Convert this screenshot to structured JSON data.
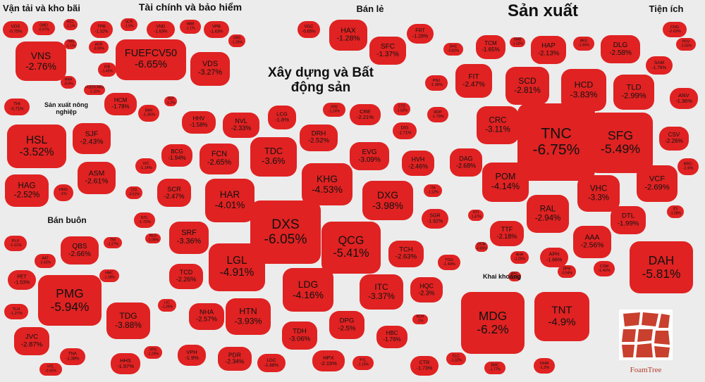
{
  "chart_data": {
    "type": "treemap",
    "title": "",
    "unit": "%",
    "colors": {
      "decline": "#e02222",
      "background": "#ececec",
      "logo": "#c9402e"
    },
    "groups": [
      {
        "name": "Vận tải và kho bãi",
        "items": [
          {
            "ticker": "VOS",
            "change": -0.75
          },
          {
            "ticker": "GMD",
            "change": -0.97
          },
          {
            "ticker": "HLC",
            "change": -1.1
          },
          {
            "ticker": "VNS",
            "change": -2.76
          },
          {
            "ticker": "TMS",
            "change": -1.1
          },
          {
            "ticker": "HAH",
            "change": -0.9
          }
        ]
      },
      {
        "name": "Tài chính và bảo hiểm",
        "items": [
          {
            "ticker": "TPB",
            "change": -1.32
          },
          {
            "ticker": "SCR",
            "change": -1.5
          },
          {
            "ticker": "VND",
            "change": -1.63
          },
          {
            "ticker": "MBB",
            "change": -1.1
          },
          {
            "ticker": "VPB",
            "change": -1.43
          },
          {
            "ticker": "AGR",
            "change": -0.99
          },
          {
            "ticker": "FUEFCV50",
            "change": -6.65
          },
          {
            "ticker": "VDS",
            "change": -3.27
          },
          {
            "ticker": "ORS",
            "change": -1.26
          },
          {
            "ticker": "EIB",
            "change": -1.45
          },
          {
            "ticker": "HCM",
            "change": -1.78
          },
          {
            "ticker": "BMI",
            "change": -1.35
          },
          {
            "ticker": "FUEDCMID",
            "change": -1.11
          },
          {
            "ticker": "SSI",
            "change": -1.2
          }
        ]
      },
      {
        "name": "Bán lẻ",
        "items": [
          {
            "ticker": "VGC",
            "change": -0.65
          },
          {
            "ticker": "HAX",
            "change": -1.28
          },
          {
            "ticker": "FRT",
            "change": -1.28
          },
          {
            "ticker": "SFC",
            "change": -1.37
          }
        ]
      },
      {
        "name": "Sản xuất",
        "items": [
          {
            "ticker": "DHC",
            "change": -0.82
          },
          {
            "ticker": "TCM",
            "change": -1.65
          },
          {
            "ticker": "SMB",
            "change": -1.32
          },
          {
            "ticker": "HAP",
            "change": -2.13
          },
          {
            "ticker": "BKG",
            "change": -1.46
          },
          {
            "ticker": "DLG",
            "change": -2.58
          },
          {
            "ticker": "PNJ",
            "change": -1.38
          },
          {
            "ticker": "FIT",
            "change": -2.47
          },
          {
            "ticker": "SCD",
            "change": -2.81
          },
          {
            "ticker": "HCD",
            "change": -3.83
          },
          {
            "ticker": "TLD",
            "change": -2.99
          },
          {
            "ticker": "RDP",
            "change": -1.79
          },
          {
            "ticker": "CRC",
            "change": -3.11
          },
          {
            "ticker": "TNC",
            "change": -6.75
          },
          {
            "ticker": "SFG",
            "change": -5.49
          },
          {
            "ticker": "DAG",
            "change": -2.68
          },
          {
            "ticker": "POM",
            "change": -4.14
          },
          {
            "ticker": "VHC",
            "change": -3.3
          },
          {
            "ticker": "VCF",
            "change": -2.69
          },
          {
            "ticker": "RAL",
            "change": -2.94
          },
          {
            "ticker": "DTL",
            "change": -1.99
          },
          {
            "ticker": "HTI",
            "change": -1.47
          },
          {
            "ticker": "TTF",
            "change": -2.18
          },
          {
            "ticker": "AAA",
            "change": -2.56
          },
          {
            "ticker": "NHH",
            "change": -1.26
          },
          {
            "ticker": "APH",
            "change": -1.66
          },
          {
            "ticker": "CSM",
            "change": -1.42
          },
          {
            "ticker": "DPM",
            "change": -0.94
          },
          {
            "ticker": "DCM",
            "change": -0.85
          },
          {
            "ticker": "BFC",
            "change": -1.1
          }
        ]
      },
      {
        "name": "Tiện ích",
        "items": [
          {
            "ticker": "CNG",
            "change": -2.63
          },
          {
            "ticker": "PGV",
            "change": -2.55
          },
          {
            "ticker": "SAM",
            "change": -1.79
          },
          {
            "ticker": "ANV",
            "change": -1.36
          },
          {
            "ticker": "CSV",
            "change": -2.26
          },
          {
            "ticker": "BRC",
            "change": -1.6
          },
          {
            "ticker": "IDI",
            "change": -1.08
          },
          {
            "ticker": "DAH",
            "change": -5.81
          }
        ]
      },
      {
        "name": "Xây dựng và Bất động sản",
        "items": [
          {
            "ticker": "LCG",
            "change": -1.8
          },
          {
            "ticker": "VRE",
            "change": -1.24
          },
          {
            "ticker": "CRE",
            "change": -2.21
          },
          {
            "ticker": "CTD",
            "change": -1.02
          },
          {
            "ticker": "HHV",
            "change": -1.58
          },
          {
            "ticker": "NVL",
            "change": -2.33
          },
          {
            "ticker": "DRH",
            "change": -2.52
          },
          {
            "ticker": "DIG",
            "change": -1.71
          },
          {
            "ticker": "BCG",
            "change": -1.94
          },
          {
            "ticker": "FCN",
            "change": -2.65
          },
          {
            "ticker": "TDC",
            "change": -3.6
          },
          {
            "ticker": "EVG",
            "change": -3.09
          },
          {
            "ticker": "VIC",
            "change": -1.14
          },
          {
            "ticker": "KHG",
            "change": -4.53
          },
          {
            "ticker": "HVH",
            "change": -2.46
          },
          {
            "ticker": "SCR",
            "change": -2.47
          },
          {
            "ticker": "HAR",
            "change": -4.01
          },
          {
            "ticker": "DXG",
            "change": -3.98
          },
          {
            "ticker": "CIG",
            "change": -0.61
          },
          {
            "ticker": "ITA",
            "change": -1.12
          },
          {
            "ticker": "NTL",
            "change": -1.72
          },
          {
            "ticker": "DXS",
            "change": -6.05
          },
          {
            "ticker": "SGR",
            "change": -1.92
          },
          {
            "ticker": "SRF",
            "change": -3.36
          },
          {
            "ticker": "QCG",
            "change": -5.41
          },
          {
            "ticker": "NLG",
            "change": -1.06
          },
          {
            "ticker": "LGL",
            "change": -4.91
          },
          {
            "ticker": "TCH",
            "change": -2.63
          },
          {
            "ticker": "TCD",
            "change": -2.26
          },
          {
            "ticker": "TGG",
            "change": -1.49
          },
          {
            "ticker": "LDG",
            "change": -4.16
          },
          {
            "ticker": "ITC",
            "change": -3.37
          },
          {
            "ticker": "HQC",
            "change": -2.3
          },
          {
            "ticker": "LIC",
            "change": -1.35
          },
          {
            "ticker": "NHA",
            "change": -2.57
          },
          {
            "ticker": "HTN",
            "change": -3.93
          },
          {
            "ticker": "DPG",
            "change": -2.5
          },
          {
            "ticker": "TDH",
            "change": -3.06
          },
          {
            "ticker": "HBC",
            "change": -1.76
          },
          {
            "ticker": "VPH",
            "change": -1.9
          },
          {
            "ticker": "PDR",
            "change": -2.34
          },
          {
            "ticker": "LGC",
            "change": -1.68
          },
          {
            "ticker": "HPX",
            "change": -2.15
          },
          {
            "ticker": "PTL",
            "change": -1.15
          },
          {
            "ticker": "KDH",
            "change": -1.0
          }
        ]
      },
      {
        "name": "Sản xuất nông nghiệp",
        "items": [
          {
            "ticker": "HSL",
            "change": -3.52
          },
          {
            "ticker": "SJF",
            "change": -2.43
          },
          {
            "ticker": "ASM",
            "change": -2.61
          },
          {
            "ticker": "HAG",
            "change": -2.52
          },
          {
            "ticker": "HNG",
            "change": -1.0
          }
        ]
      },
      {
        "name": "Bán buôn",
        "items": [
          {
            "ticker": "PLX",
            "change": -1.11
          },
          {
            "ticker": "AAT",
            "change": -2.42
          },
          {
            "ticker": "QBS",
            "change": -2.66
          },
          {
            "ticker": "TNI",
            "change": -1.27
          },
          {
            "ticker": "PET",
            "change": -1.53
          },
          {
            "ticker": "HMC",
            "change": -1.38
          },
          {
            "ticker": "PMG",
            "change": -5.94
          },
          {
            "ticker": "TLH",
            "change": -1.27
          },
          {
            "ticker": "TDG",
            "change": -3.88
          },
          {
            "ticker": "JVC",
            "change": -2.87
          },
          {
            "ticker": "TNA",
            "change": -1.38
          },
          {
            "ticker": "HHS",
            "change": -1.97
          },
          {
            "ticker": "VPG",
            "change": -1.29
          },
          {
            "ticker": "HTL",
            "change": -0.92
          }
        ]
      },
      {
        "name": "Khai khoáng",
        "items": [
          {
            "ticker": "MDG",
            "change": -6.2
          },
          {
            "ticker": "TNT",
            "change": -4.9
          },
          {
            "ticker": "BMC",
            "change": -1.77
          },
          {
            "ticker": "DHM",
            "change": -1.2
          }
        ]
      }
    ],
    "standalone": [
      {
        "ticker": "THI",
        "change": -0.71
      },
      {
        "ticker": "CTR",
        "change": -1.73
      },
      {
        "ticker": "ELC",
        "change": -1.32
      }
    ]
  },
  "logo": {
    "text": "FoamTree"
  }
}
